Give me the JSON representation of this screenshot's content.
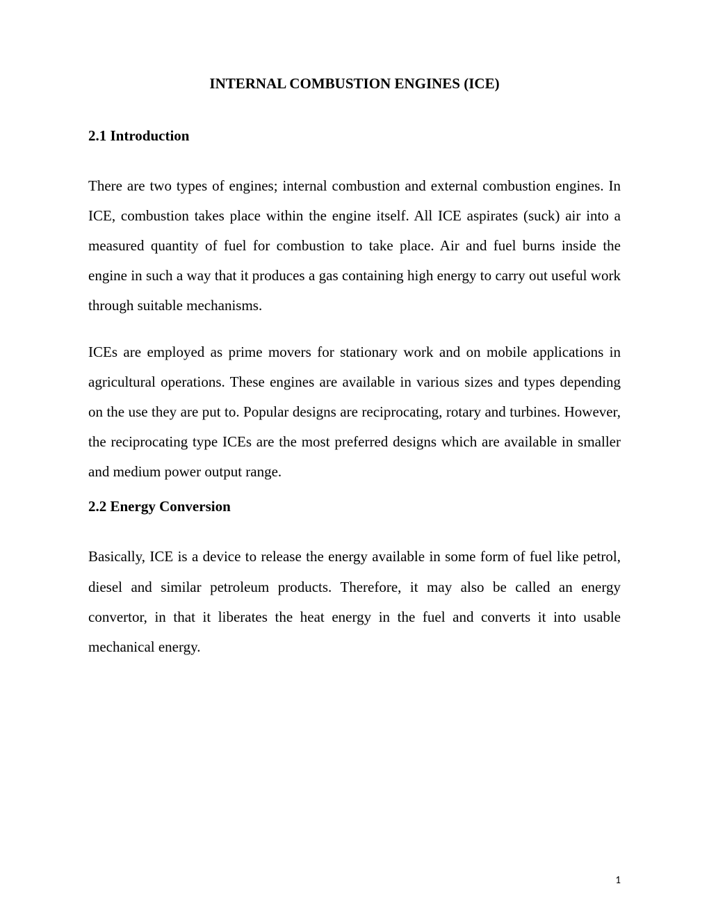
{
  "title": "INTERNAL COMBUSTION ENGINES (ICE)",
  "section1": {
    "heading": "2.1 Introduction",
    "paragraph1": "There are two types of engines; internal combustion and external combustion engines. In ICE, combustion takes place within the engine itself. All ICE aspirates (suck) air into a measured quantity of fuel for combustion to take place.  Air and fuel burns inside the engine in such a way that it produces a gas containing high energy to carry out useful work through suitable mechanisms.",
    "paragraph2": "ICEs are employed as prime movers for stationary work and on mobile applications in agricultural operations. These engines are available in various sizes and types depending on the use they are put to. Popular designs are reciprocating, rotary and turbines. However, the reciprocating type ICEs are the most preferred designs which are available in smaller and medium power output range."
  },
  "section2": {
    "heading": "2.2 Energy Conversion",
    "paragraph1": "Basically, ICE is a device to release the energy available in some form of fuel like petrol, diesel and similar petroleum products. Therefore, it may also be called an energy convertor, in that it liberates the heat energy in the fuel and converts it into usable mechanical energy."
  },
  "pageNumber": "1"
}
